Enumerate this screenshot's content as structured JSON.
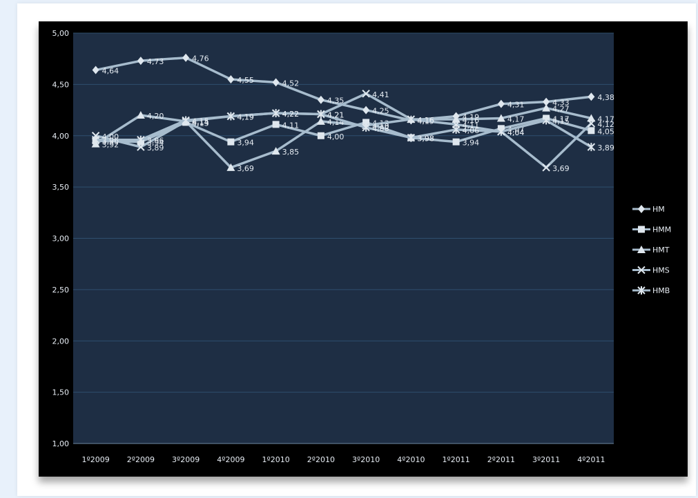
{
  "chart_data": {
    "type": "line",
    "title": "",
    "xlabel": "",
    "ylabel": "",
    "categories": [
      "1º2009",
      "2º2009",
      "3º2009",
      "4º2009",
      "1º2010",
      "2º2010",
      "3º2010",
      "4º2010",
      "1º2011",
      "2º2011",
      "3º2011",
      "4º2011"
    ],
    "ylim": [
      1.0,
      5.0
    ],
    "yticks": [
      "1,00",
      "1,50",
      "2,00",
      "2,50",
      "3,00",
      "3,50",
      "4,00",
      "4,50",
      "5,00"
    ],
    "grid": true,
    "legend_position": "right",
    "series": [
      {
        "name": "HM",
        "marker": "diamond",
        "values": [
          4.64,
          4.73,
          4.76,
          4.55,
          4.52,
          4.35,
          4.25,
          4.15,
          4.19,
          4.31,
          4.33,
          4.38
        ],
        "labels": [
          "4,64",
          "4,73",
          "4,76",
          "4,55",
          "4,52",
          "4,35",
          "4,25",
          "4,15",
          "4,19",
          "4,31",
          "4,33",
          "4,38"
        ]
      },
      {
        "name": "HMM",
        "marker": "square",
        "values": [
          3.95,
          3.94,
          4.13,
          3.94,
          4.11,
          4.0,
          4.13,
          3.98,
          3.94,
          4.07,
          4.17,
          4.05
        ],
        "labels": [
          "3,95",
          "3,94",
          "4,13",
          "3,94",
          "4,11",
          "4,00",
          "4,13",
          "3,98",
          "3,94",
          "4,07",
          "4,17",
          "4,05"
        ]
      },
      {
        "name": "HMT",
        "marker": "triangle",
        "values": [
          3.92,
          4.2,
          4.14,
          3.69,
          3.85,
          4.14,
          4.1,
          4.16,
          4.16,
          4.17,
          4.27,
          4.17
        ],
        "labels": [
          "3,92",
          "4,20",
          "4,14",
          "3,69",
          "3,85",
          "4,14",
          "4,10",
          "4,16",
          "4,16",
          "4,17",
          "4,27",
          "4,17"
        ]
      },
      {
        "name": "HMS",
        "marker": "x",
        "values": [
          4.0,
          3.89,
          4.14,
          4.19,
          4.22,
          4.21,
          4.41,
          4.16,
          4.11,
          4.04,
          3.69,
          4.12
        ],
        "labels": [
          "4,00",
          "3,89",
          "4,14",
          "4,19",
          "4,22",
          "4,21",
          "4,41",
          "4,16",
          "4,11",
          "4,04",
          "3,69",
          "4,12"
        ]
      },
      {
        "name": "HMB",
        "marker": "asterisk",
        "values": [
          3.96,
          3.96,
          4.15,
          4.19,
          4.22,
          4.21,
          4.08,
          3.98,
          4.06,
          4.04,
          4.15,
          3.89
        ],
        "labels": [
          "3,96",
          "3,96",
          "4,15",
          "4,19",
          "4,22",
          "4,21",
          "4,08",
          "3,98",
          "4,06",
          "4,04",
          "4,15",
          "3,89"
        ]
      }
    ],
    "colors": {
      "plot_bg": "#1e2e44",
      "frame_bg": "#000000",
      "grid": "#2f4f6e",
      "line": "#a7bccd",
      "marker": "#dfe7ee",
      "text": "#e6ecf2"
    }
  }
}
